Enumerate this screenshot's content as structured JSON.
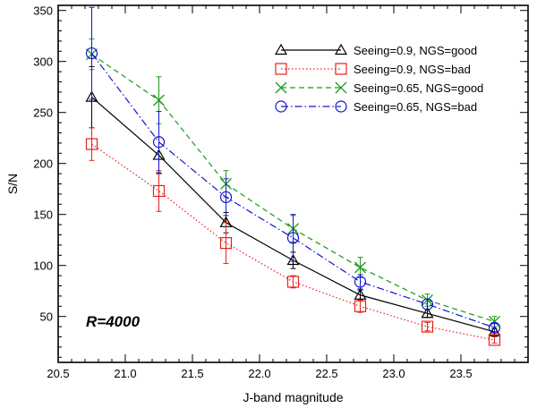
{
  "chart_data": {
    "type": "line",
    "title": "",
    "annotation": "R=4000",
    "xlabel": "J-band magnitude",
    "ylabel": "S/N",
    "xlim": [
      20.5,
      24.0
    ],
    "ylim": [
      5,
      355
    ],
    "x_ticks": [
      20.5,
      21.0,
      21.5,
      22.0,
      22.5,
      23.0,
      23.5
    ],
    "x_tick_labels": [
      "20.5",
      "21.0",
      "21.5",
      "22.0",
      "22.5",
      "23.0",
      "23.5"
    ],
    "y_ticks": [
      50,
      100,
      150,
      200,
      250,
      300,
      350
    ],
    "y_tick_labels": [
      "50",
      "100",
      "150",
      "200",
      "250",
      "300",
      "350"
    ],
    "x": [
      20.75,
      21.25,
      21.75,
      22.25,
      22.75,
      23.25,
      23.75
    ],
    "legend_position": "top-right",
    "series": [
      {
        "name": "Seeing=0.9, NGS=good",
        "color": "#000000",
        "marker": "triangle",
        "dash": "solid",
        "values": [
          265,
          208,
          142,
          105,
          71,
          53,
          35
        ],
        "errors": [
          30,
          18,
          10,
          8,
          5,
          4,
          3
        ]
      },
      {
        "name": "Seeing=0.9, NGS=bad",
        "color": "#e8211b",
        "marker": "square",
        "dash": "dotted",
        "values": [
          219,
          173,
          122,
          84,
          60,
          40,
          27
        ],
        "errors": [
          16,
          20,
          20,
          6,
          6,
          4,
          3
        ]
      },
      {
        "name": "Seeing=0.65, NGS=good",
        "color": "#1a9b1a",
        "marker": "cross",
        "dash": "dashed",
        "values": [
          307,
          262,
          180,
          136,
          98,
          66,
          45
        ],
        "errors": [
          15,
          23,
          13,
          13,
          10,
          6,
          5
        ]
      },
      {
        "name": "Seeing=0.65, NGS=bad",
        "color": "#1414d6",
        "marker": "circle",
        "dash": "dashdot",
        "values": [
          308,
          221,
          167,
          127,
          84,
          62,
          39
        ],
        "errors": [
          45,
          30,
          18,
          23,
          7,
          5,
          4
        ]
      }
    ]
  }
}
